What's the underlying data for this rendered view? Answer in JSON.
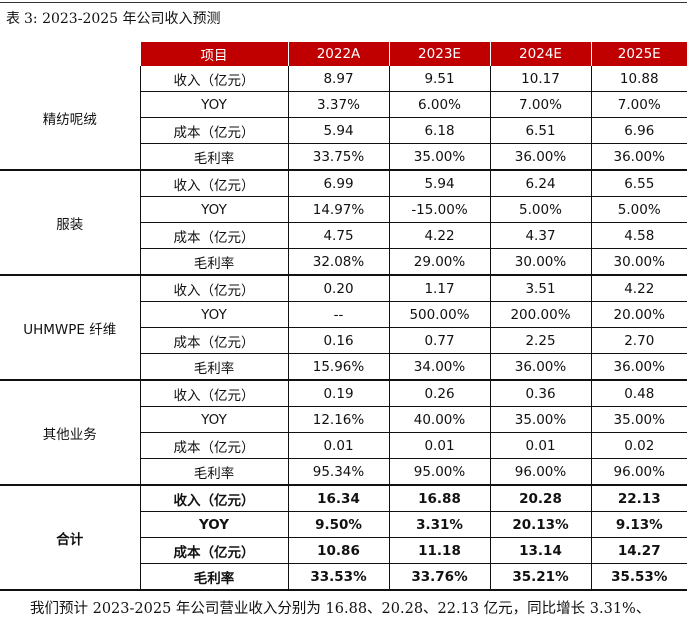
{
  "caption": {
    "label": "表",
    "number": "3:",
    "title": "2023-2025 年公司收入预测"
  },
  "header": {
    "item": "项目",
    "years": [
      "2022A",
      "2023E",
      "2024E",
      "2025E"
    ]
  },
  "groups": [
    {
      "name": "精纺呢绒",
      "rows": [
        {
          "metric": "收入（亿元）",
          "values": [
            "8.97",
            "9.51",
            "10.17",
            "10.88"
          ]
        },
        {
          "metric": "YOY",
          "values": [
            "3.37%",
            "6.00%",
            "7.00%",
            "7.00%"
          ]
        },
        {
          "metric": "成本（亿元）",
          "values": [
            "5.94",
            "6.18",
            "6.51",
            "6.96"
          ]
        },
        {
          "metric": "毛利率",
          "values": [
            "33.75%",
            "35.00%",
            "36.00%",
            "36.00%"
          ]
        }
      ]
    },
    {
      "name": "服装",
      "rows": [
        {
          "metric": "收入（亿元）",
          "values": [
            "6.99",
            "5.94",
            "6.24",
            "6.55"
          ]
        },
        {
          "metric": "YOY",
          "values": [
            "14.97%",
            "-15.00%",
            "5.00%",
            "5.00%"
          ]
        },
        {
          "metric": "成本（亿元）",
          "values": [
            "4.75",
            "4.22",
            "4.37",
            "4.58"
          ]
        },
        {
          "metric": "毛利率",
          "values": [
            "32.08%",
            "29.00%",
            "30.00%",
            "30.00%"
          ]
        }
      ]
    },
    {
      "name": "UHMWPE 纤维",
      "rows": [
        {
          "metric": "收入（亿元）",
          "values": [
            "0.20",
            "1.17",
            "3.51",
            "4.22"
          ]
        },
        {
          "metric": "YOY",
          "values": [
            "--",
            "500.00%",
            "200.00%",
            "20.00%"
          ]
        },
        {
          "metric": "成本（亿元）",
          "values": [
            "0.16",
            "0.77",
            "2.25",
            "2.70"
          ]
        },
        {
          "metric": "毛利率",
          "values": [
            "15.96%",
            "34.00%",
            "36.00%",
            "36.00%"
          ]
        }
      ]
    },
    {
      "name": "其他业务",
      "rows": [
        {
          "metric": "收入（亿元）",
          "values": [
            "0.19",
            "0.26",
            "0.36",
            "0.48"
          ]
        },
        {
          "metric": "YOY",
          "values": [
            "12.16%",
            "40.00%",
            "35.00%",
            "35.00%"
          ]
        },
        {
          "metric": "成本（亿元）",
          "values": [
            "0.01",
            "0.01",
            "0.01",
            "0.02"
          ]
        },
        {
          "metric": "毛利率",
          "values": [
            "95.34%",
            "95.00%",
            "96.00%",
            "96.00%"
          ]
        }
      ]
    },
    {
      "name": "合计",
      "bold": true,
      "rows": [
        {
          "metric": "收入（亿元）",
          "values": [
            "16.34",
            "16.88",
            "20.28",
            "22.13"
          ]
        },
        {
          "metric": "YOY",
          "values": [
            "9.50%",
            "3.31%",
            "20.13%",
            "9.13%"
          ]
        },
        {
          "metric": "成本（亿元）",
          "values": [
            "10.86",
            "11.18",
            "13.14",
            "14.27"
          ]
        },
        {
          "metric": "毛利率",
          "values": [
            "33.53%",
            "33.76%",
            "35.21%",
            "35.53%"
          ]
        }
      ]
    }
  ],
  "paragraph": "我们预计 2023-2025 年公司营业收入分别为 16.88、20.28、22.13 亿元，同比增长 3.31%、"
}
